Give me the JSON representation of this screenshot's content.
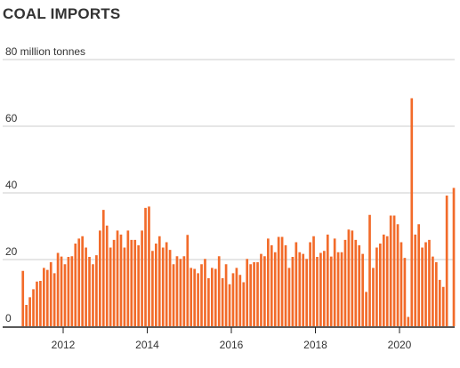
{
  "chart_data": {
    "type": "bar",
    "title": "COAL IMPORTS",
    "ylabel": "",
    "xlabel": "",
    "y_unit_label": "80 million tonnes",
    "ylim": [
      0,
      80
    ],
    "y_ticks": [
      {
        "value": 80,
        "label": "80 million tonnes"
      },
      {
        "value": 60,
        "label": "60"
      },
      {
        "value": 40,
        "label": "40"
      },
      {
        "value": 20,
        "label": "20"
      },
      {
        "value": 0,
        "label": "0"
      }
    ],
    "x_ticks": [
      {
        "value": 2012,
        "label": "2012"
      },
      {
        "value": 2014,
        "label": "2014"
      },
      {
        "value": 2016,
        "label": "2016"
      },
      {
        "value": 2018,
        "label": "2018"
      },
      {
        "value": 2020,
        "label": "2020"
      }
    ],
    "x_start": "2011-01",
    "interval": "month",
    "grid": true,
    "bar_color": "#f26b2a",
    "values": [
      16.6,
      6.4,
      8.7,
      11.1,
      13.4,
      13.6,
      17.5,
      16.9,
      19.2,
      15.9,
      22,
      20.9,
      18.6,
      20.8,
      21,
      24.8,
      26.3,
      27,
      23.6,
      20.8,
      18.6,
      21.3,
      28.7,
      34.9,
      30.2,
      23.6,
      25.9,
      28.7,
      27.5,
      23.6,
      28.7,
      25.9,
      25.9,
      24.3,
      28.7,
      35.5,
      35.9,
      22.6,
      24.8,
      27,
      23.6,
      25.2,
      22.9,
      18.6,
      21,
      20.2,
      21,
      27.4,
      17.5,
      17.2,
      15.9,
      18.6,
      20.2,
      14.4,
      17.5,
      17.2,
      21,
      14.4,
      18.6,
      12.6,
      15.9,
      17.5,
      15.4,
      13.2,
      20.2,
      18.6,
      19.2,
      19.2,
      21.7,
      21,
      26.3,
      24.3,
      22.2,
      26.8,
      26.8,
      24.3,
      17.5,
      20.8,
      25.2,
      22.2,
      21.7,
      20.2,
      25.2,
      27,
      20.8,
      22,
      22.6,
      27.5,
      20.9,
      26.3,
      22.2,
      22.2,
      25.9,
      29,
      28.7,
      25.9,
      24.3,
      21.7,
      10.3,
      33.4,
      17.5,
      23.6,
      24.8,
      27.5,
      27,
      33.2,
      33.2,
      30.6,
      25.2,
      20.5,
      2.8,
      68.4,
      27.5,
      30.6,
      23.6,
      25.2,
      25.9,
      20.9,
      19.2,
      13.9,
      11.8,
      39.2,
      0,
      41.5
    ]
  }
}
